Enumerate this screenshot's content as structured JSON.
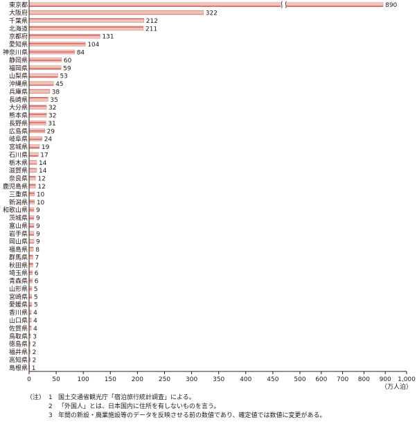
{
  "chart_data": {
    "type": "bar",
    "orientation": "horizontal",
    "categories": [
      "東京都",
      "大阪府",
      "千葉県",
      "北海道",
      "京都府",
      "愛知県",
      "神奈川県",
      "静岡県",
      "福岡県",
      "山梨県",
      "沖縄県",
      "兵庫県",
      "長崎県",
      "大分県",
      "熊本県",
      "長野県",
      "広島県",
      "岐阜県",
      "宮城県",
      "石川県",
      "栃木県",
      "滋賀県",
      "奈良県",
      "鹿児島県",
      "三重県",
      "新潟県",
      "和歌山県",
      "茨城県",
      "富山県",
      "岩手県",
      "岡山県",
      "福島県",
      "群馬県",
      "秋田県",
      "埼玉県",
      "青森県",
      "山形県",
      "宮崎県",
      "愛媛県",
      "香川県",
      "山口県",
      "佐賀県",
      "鳥取県",
      "徳島県",
      "福井県",
      "高知県",
      "島根県"
    ],
    "values": [
      890,
      322,
      212,
      211,
      131,
      104,
      84,
      60,
      59,
      53,
      45,
      38,
      35,
      32,
      32,
      31,
      29,
      24,
      19,
      17,
      14,
      14,
      12,
      12,
      10,
      10,
      9,
      9,
      9,
      9,
      9,
      8,
      7,
      7,
      6,
      6,
      5,
      5,
      5,
      4,
      4,
      4,
      3,
      2,
      2,
      2,
      1
    ],
    "xlim": [
      0,
      1000
    ],
    "xticks": [
      "0",
      "50",
      "100",
      "150",
      "200",
      "250",
      "300",
      "350",
      "400",
      "450",
      "500",
      "600",
      "700",
      "800",
      "900",
      "1,000"
    ],
    "xlabel": "（万人泊）",
    "axis_break": true,
    "bar_fill": "#f1c3b7",
    "bar_stripe": "#d24b52",
    "grid": false
  },
  "notes": {
    "prefix": "（注）",
    "items": [
      {
        "num": "1",
        "text": "国土交通省観光庁「宿泊旅行統計調査」による。"
      },
      {
        "num": "2",
        "text": "「外国人」とは、日本国内に住所を有しないものを言う。"
      },
      {
        "num": "3",
        "text": "年間の新設・廃業施設等のデータを反映させる前の数値であり、確定値では数値に変更がある。"
      }
    ]
  }
}
